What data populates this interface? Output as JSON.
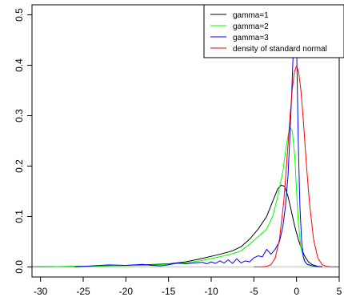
{
  "chart_data": {
    "type": "line",
    "title": "",
    "xlabel": "",
    "ylabel": "",
    "xlim": [
      -31,
      5
    ],
    "ylim": [
      -0.02,
      0.52
    ],
    "x_ticks": [
      -30,
      -25,
      -20,
      -15,
      -10,
      -5,
      0,
      5
    ],
    "y_ticks": [
      0.0,
      0.1,
      0.2,
      0.3,
      0.4,
      0.5
    ],
    "y_tick_labels": [
      "0.0",
      "0.1",
      "0.2",
      "0.3",
      "0.4",
      "0.5"
    ],
    "grid": false,
    "legend_position": "top-right",
    "baseline": {
      "y": 0,
      "color": "#bebebe"
    },
    "series": [
      {
        "name": "gamma=1",
        "color": "#000000",
        "x": [
          -31,
          -26,
          -22,
          -18,
          -15,
          -13,
          -11,
          -9,
          -7.5,
          -6.5,
          -5.5,
          -4.5,
          -3.5,
          -2.8,
          -2.2,
          -1.8,
          -1.4,
          -1.0,
          -0.6,
          -0.2,
          0.2,
          0.6,
          1.0,
          1.4,
          1.8,
          2.5,
          3
        ],
        "y": [
          0,
          0.001,
          0.002,
          0.004,
          0.006,
          0.01,
          0.017,
          0.025,
          0.032,
          0.04,
          0.055,
          0.075,
          0.1,
          0.13,
          0.155,
          0.162,
          0.16,
          0.14,
          0.11,
          0.08,
          0.055,
          0.035,
          0.02,
          0.01,
          0.005,
          0.001,
          0
        ]
      },
      {
        "name": "gamma=2",
        "color": "#00ff00",
        "x": [
          -31,
          -26,
          -22,
          -18,
          -15,
          -13,
          -11,
          -9,
          -7.5,
          -6.5,
          -5.5,
          -4.5,
          -3.5,
          -2.8,
          -2.2,
          -1.6,
          -1.2,
          -0.8,
          -0.5,
          -0.2,
          0.0,
          0.2,
          0.5,
          0.9,
          1.3,
          2,
          3
        ],
        "y": [
          0,
          0.001,
          0.002,
          0.003,
          0.005,
          0.008,
          0.013,
          0.02,
          0.026,
          0.032,
          0.045,
          0.06,
          0.075,
          0.1,
          0.14,
          0.19,
          0.24,
          0.278,
          0.27,
          0.22,
          0.15,
          0.09,
          0.04,
          0.012,
          0.004,
          0.001,
          0
        ]
      },
      {
        "name": "gamma=3",
        "color": "#0000ff",
        "x": [
          -26,
          -24,
          -22,
          -20,
          -18,
          -17,
          -16,
          -15,
          -14,
          -13,
          -12,
          -11,
          -10.5,
          -10,
          -9.5,
          -9,
          -8.5,
          -8,
          -7.5,
          -7,
          -6.5,
          -6,
          -5.5,
          -5,
          -4.5,
          -4,
          -3.5,
          -3,
          -2.5,
          -2,
          -1.6,
          -1.3,
          -1.0,
          -0.8,
          -0.6,
          -0.4,
          -0.25,
          -0.15,
          -0.05,
          0.05,
          0.2,
          0.4,
          0.6,
          0.8,
          1.0,
          1.3,
          1.7,
          2.2,
          3
        ],
        "y": [
          0,
          0.002,
          0.004,
          0.003,
          0.005,
          0.003,
          0.002,
          0.004,
          0.008,
          0.006,
          0.008,
          0.009,
          0.006,
          0.01,
          0.007,
          0.012,
          0.008,
          0.014,
          0.007,
          0.016,
          0.008,
          0.012,
          0.01,
          0.018,
          0.022,
          0.02,
          0.035,
          0.025,
          0.035,
          0.05,
          0.08,
          0.12,
          0.18,
          0.25,
          0.33,
          0.42,
          0.5,
          0.53,
          0.52,
          0.4,
          0.25,
          0.12,
          0.05,
          0.02,
          0.01,
          0.005,
          0.003,
          0.001,
          0
        ]
      },
      {
        "name": "density of standard normal",
        "color": "#ff0000",
        "x": [
          -5,
          -4,
          -3.5,
          -3,
          -2.5,
          -2,
          -1.5,
          -1.25,
          -1,
          -0.75,
          -0.5,
          -0.25,
          0,
          0.25,
          0.5,
          0.75,
          1,
          1.25,
          1.5,
          2,
          2.5,
          3,
          3.5,
          4,
          5
        ],
        "y": [
          0,
          0.0001,
          0.0009,
          0.0044,
          0.0175,
          0.054,
          0.1295,
          0.1826,
          0.242,
          0.3011,
          0.3521,
          0.3867,
          0.3989,
          0.3867,
          0.3521,
          0.3011,
          0.242,
          0.1826,
          0.1295,
          0.054,
          0.0175,
          0.0044,
          0.0009,
          0.0001,
          0
        ]
      }
    ]
  }
}
